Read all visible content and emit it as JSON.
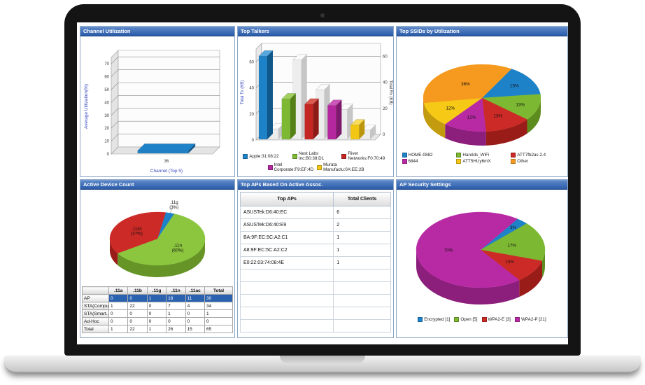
{
  "panels": {
    "channel_utilization": {
      "title": "Channel Utilization",
      "chart": {
        "type": "bar3d",
        "ylabel": "Average Utilization(%)",
        "xlabel": "Channel (Top 5)",
        "yticks": [
          0,
          10,
          20,
          30,
          40,
          50,
          60,
          70
        ],
        "ymax": 75,
        "categories": [
          "36"
        ],
        "series": [
          {
            "name": "36",
            "values": [
              2
            ],
            "color": "#1e82c8",
            "light": "#58a7de",
            "dark": "#11588a"
          }
        ]
      }
    },
    "top_talkers": {
      "title": "Top Talkers",
      "chart": {
        "type": "bar3d",
        "ylabel_left": "Total Tx (KB)",
        "ylabel_right": "Total Rx (KB)",
        "yticks": [
          0,
          20,
          40,
          60
        ],
        "ymax": 70,
        "categories": [
          "Apple:31:08:22",
          "Nest Labs Inc:B0:38:D1",
          "Rivet Networks:F0:70:49",
          "Intel Corporate:F9:EF:4D",
          "Murata Manufactu:0A:EE:2B"
        ],
        "tx_values": [
          64,
          31,
          27,
          26,
          11
        ],
        "rx_values": [
          8,
          61,
          38,
          23,
          7
        ],
        "rx_color": {
          "main": "#ededed",
          "light": "#fbfbfb",
          "dark": "#c6c6c6"
        },
        "bar_colors": [
          {
            "main": "#1e82c8",
            "light": "#58a7de",
            "dark": "#11588a"
          },
          {
            "main": "#7cb832",
            "light": "#a2d05e",
            "dark": "#558117"
          },
          {
            "main": "#c42723",
            "light": "#da5a50",
            "dark": "#8c1a16"
          },
          {
            "main": "#b5279e",
            "light": "#cd56ba",
            "dark": "#7e1a6e"
          },
          {
            "main": "#f2c713",
            "light": "#f8dc5a",
            "dark": "#bb960d"
          }
        ],
        "legend": [
          {
            "label": "Apple:31:08:22",
            "color": "#1e82c8"
          },
          {
            "label": "Nest Labs Inc:B0:38:D1",
            "color": "#7cb832"
          },
          {
            "label": "Rivet Networks:F0:70:49",
            "color": "#c42723"
          },
          {
            "label": "Intel Corporate:F9:EF:4D",
            "color": "#b5279e"
          },
          {
            "label": "Murata Manufactu:0A:EE:2B",
            "color": "#f2c713"
          }
        ]
      }
    },
    "top_ssids": {
      "title": "Top SSIDs by Utilization",
      "chart": {
        "type": "pie3d",
        "slices": [
          {
            "name": "HOME-0882",
            "pct": 15,
            "label": "15%",
            "color": "#1e82c8",
            "dark": "#135f94"
          },
          {
            "name": "Harolds_WiFi",
            "pct": 13,
            "label": "13%",
            "color": "#7cb832",
            "dark": "#5d8c1e"
          },
          {
            "name": "ATT7fb2as 2.4",
            "pct": 13,
            "label": "13%",
            "color": "#cc2a26",
            "dark": "#9a1c18"
          },
          {
            "name": "6844",
            "pct": 12,
            "label": "12%",
            "color": "#b82aa4",
            "dark": "#8c1e7c"
          },
          {
            "name": "ATT5HUy6mX",
            "pct": 12,
            "label": "12%",
            "color": "#f5c916",
            "dark": "#c39b0e"
          },
          {
            "name": "Other",
            "pct": 36,
            "label": "36%",
            "color": "#f59a1e",
            "dark": "#c07613"
          }
        ]
      }
    },
    "active_device_count": {
      "title": "Active Device Count",
      "chart": {
        "type": "pie3d",
        "slices": [
          {
            "name": ".11g",
            "pct": 3,
            "label": ".11g\n(3%)",
            "color": "#1e82c8",
            "dark": "#135f94"
          },
          {
            "name": ".11n",
            "pct": 60,
            "label": ".11n\n(60%)",
            "color": "#8cc63f",
            "dark": "#679427"
          },
          {
            "name": ".11ac",
            "pct": 37,
            "label": ".11ac\n(37%)",
            "color": "#cc2a26",
            "dark": "#9a1c18"
          }
        ]
      },
      "table": {
        "columns": [
          "",
          ".11a",
          ".11b",
          ".11g",
          ".11n",
          ".11ac",
          "Total"
        ],
        "rows": [
          {
            "label": "AP",
            "values": [
              0,
              0,
              1,
              18,
              11,
              30
            ],
            "highlight": true
          },
          {
            "label": "STA(Compu...",
            "values": [
              1,
              22,
              0,
              7,
              4,
              34
            ]
          },
          {
            "label": "STA(Smart...",
            "values": [
              0,
              0,
              0,
              1,
              0,
              1
            ]
          },
          {
            "label": "Ad-Hoc",
            "values": [
              0,
              0,
              0,
              0,
              0,
              0
            ]
          },
          {
            "label": "Total",
            "values": [
              1,
              22,
              1,
              26,
              15,
              65
            ]
          }
        ]
      }
    },
    "top_aps": {
      "title": "Top APs Based On Active Assoc.",
      "table": {
        "columns": [
          "Top APs",
          "Total Clients"
        ],
        "rows": [
          [
            "ASUSTek:D6:40:EC",
            "6"
          ],
          [
            "ASUSTek:D6:40:E9",
            "2"
          ],
          [
            "BA:9F:EC:5C:A2:C1",
            "1"
          ],
          [
            "A8:9F:EC:5C:A2:C2",
            "1"
          ],
          [
            "E0:22:03:74:08:4E",
            "1"
          ],
          [
            "",
            ""
          ],
          [
            "",
            ""
          ],
          [
            "",
            ""
          ],
          [
            "",
            ""
          ],
          [
            "",
            ""
          ]
        ]
      }
    },
    "ap_security": {
      "title": "AP Security Settings",
      "chart": {
        "type": "pie3d",
        "slices": [
          {
            "name": "Encrypted [1]",
            "pct": 3,
            "label": "3%",
            "color": "#1e82c8",
            "dark": "#135f94"
          },
          {
            "name": "Open [5]",
            "pct": 17,
            "label": "17%",
            "color": "#7cb832",
            "dark": "#5d8c1e"
          },
          {
            "name": "WPA2-E [3]",
            "pct": 10,
            "label": "10%",
            "color": "#cc2a26",
            "dark": "#9a1c18"
          },
          {
            "name": "WPA2-P [21]",
            "pct": 70,
            "label": "70%",
            "color": "#b82aa4",
            "dark": "#8c1e7c"
          }
        ]
      }
    }
  }
}
